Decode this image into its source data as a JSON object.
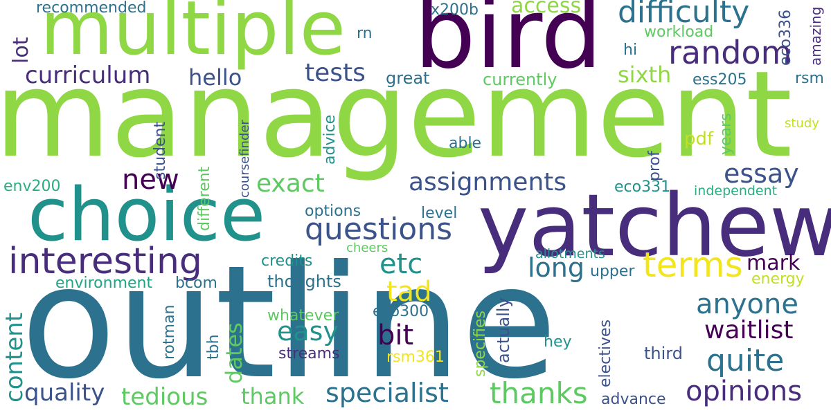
{
  "palette": {
    "light_green": "#8fd744",
    "green": "#5ec962",
    "yellow_green": "#c2df23",
    "yellow": "#f2e51d",
    "teal": "#21918c",
    "teal_blue": "#2c728e",
    "blue": "#3b528b",
    "indigo": "#472d7b",
    "dark_purple": "#440154",
    "cyan": "#28ae80",
    "aqua": "#20a486"
  },
  "words": [
    "management",
    "outline",
    "bird",
    "multiple",
    "yatchew",
    "choice",
    "interesting",
    "random",
    "difficulty",
    "terms",
    "questions",
    "curriculum",
    "assignments",
    "essay",
    "anyone",
    "quite",
    "opinions",
    "thanks",
    "specialist",
    "tedious",
    "quality",
    "content",
    "hello",
    "tests",
    "exact",
    "new",
    "long",
    "mark",
    "waitlist",
    "easy",
    "bit",
    "tad",
    "etc",
    "thank",
    "dates",
    "lot",
    "access",
    "sixth",
    "workload",
    "hi",
    "eco336",
    "amazing",
    "rsm",
    "ess205",
    "currently",
    "great",
    "rn",
    "x200b",
    "recommended",
    "student",
    "coursefinder",
    "advice",
    "able",
    "pdf",
    "prof",
    "years",
    "study",
    "eco331",
    "independent",
    "env200",
    "different",
    "options",
    "level",
    "cheers",
    "allotments",
    "upper",
    "energy",
    "credits",
    "thoughts",
    "environment",
    "bcom",
    "rotman",
    "tbh",
    "whatever",
    "eco300",
    "streams",
    "rsm361",
    "specifies",
    "actually",
    "electives",
    "hey",
    "third",
    "advance"
  ]
}
